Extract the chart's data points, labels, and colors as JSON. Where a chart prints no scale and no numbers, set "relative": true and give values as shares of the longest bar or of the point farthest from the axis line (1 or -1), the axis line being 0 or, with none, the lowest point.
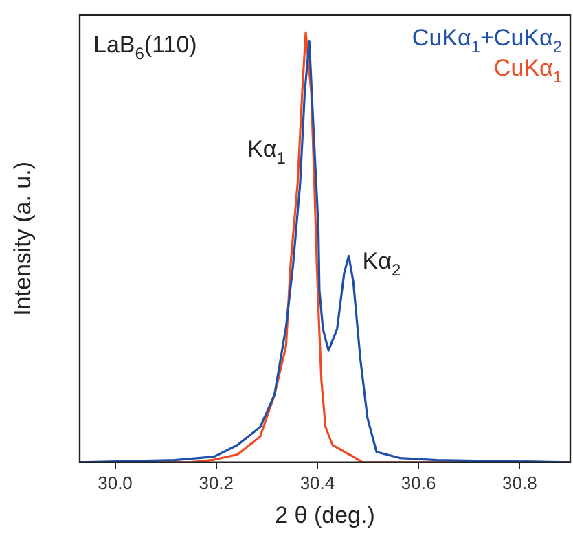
{
  "chart_data": {
    "type": "line",
    "relative": true,
    "xlabel": "2 θ (deg.)",
    "ylabel": "Intensity (a. u.)",
    "xlim": [
      29.93,
      30.9
    ],
    "xticks": [
      {
        "value": 30,
        "label": "30.0"
      },
      30.2,
      30.4,
      30.6,
      30.8
    ],
    "grid": false,
    "legend": "top right",
    "marker": "none",
    "line_style": "solid",
    "annotations": [
      "LaB$_{6}$(110)",
      {
        "text": "Kα$_{1}$",
        "x": 30.37,
        "y": 0.73
      },
      {
        "text": "Kα$_{2}$",
        "x": 30.462,
        "y": 0.47
      }
    ],
    "series": [
      {
        "name": "CuKα$_{1}$+CuKα$_{2}$",
        "color": "#1f4fa8",
        "x": [
          29.93,
          30.118,
          30.196,
          30.242,
          30.287,
          30.315,
          30.338,
          30.352,
          30.366,
          30.375,
          30.384,
          30.393,
          30.402,
          30.404,
          30.411,
          30.422,
          30.439,
          30.453,
          30.462,
          30.471,
          30.485,
          30.499,
          30.517,
          30.563,
          30.636,
          30.9
        ],
        "values": [
          0,
          0.005,
          0.013,
          0.04,
          0.082,
          0.156,
          0.314,
          0.46,
          0.65,
          0.86,
          0.98,
          0.76,
          0.546,
          0.4,
          0.31,
          0.26,
          0.31,
          0.44,
          0.48,
          0.42,
          0.24,
          0.103,
          0.024,
          0.01,
          0.005,
          0
        ]
      },
      {
        "name": "CuKα$_{1}$",
        "color": "#f04a23",
        "x": [
          29.93,
          30.15,
          30.196,
          30.242,
          30.287,
          30.315,
          30.338,
          30.347,
          30.361,
          30.37,
          30.377,
          30.388,
          30.394,
          30.399,
          30.403,
          30.408,
          30.416,
          30.43,
          30.471,
          30.489,
          30.9
        ],
        "values": [
          0,
          0,
          0.006,
          0.018,
          0.06,
          0.156,
          0.27,
          0.46,
          0.65,
          0.86,
          1,
          0.86,
          0.65,
          0.46,
          0.33,
          0.19,
          0.082,
          0.04,
          0.013,
          0,
          0
        ]
      }
    ]
  }
}
